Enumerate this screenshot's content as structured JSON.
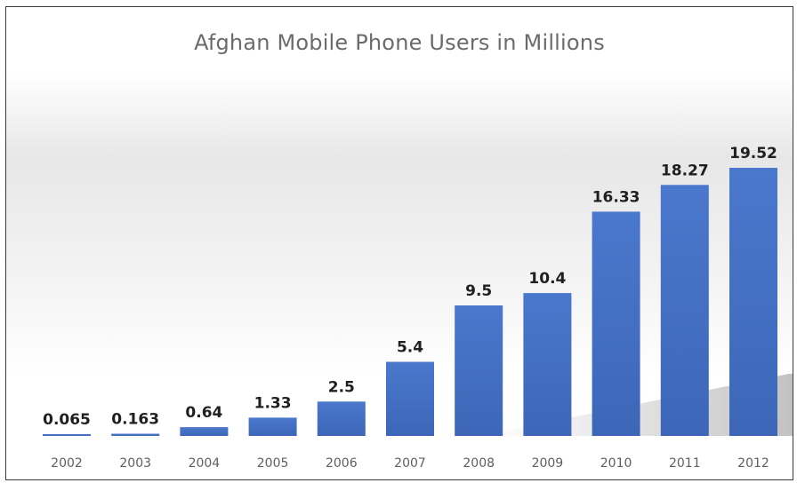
{
  "chart_data": {
    "type": "bar",
    "title": "Afghan Mobile Phone Users in Millions",
    "xlabel": "",
    "ylabel": "",
    "categories": [
      "2002",
      "2003",
      "2004",
      "2005",
      "2006",
      "2007",
      "2008",
      "2009",
      "2010",
      "2011",
      "2012"
    ],
    "values": [
      0.065,
      0.163,
      0.64,
      1.33,
      2.5,
      5.4,
      9.5,
      10.4,
      16.33,
      18.27,
      19.52
    ],
    "value_labels": [
      "0.065",
      "0.163",
      "0.64",
      "1.33",
      "2.5",
      "5.4",
      "9.5",
      "10.4",
      "16.33",
      "18.27",
      "19.52"
    ],
    "ylim": [
      0,
      19.52
    ],
    "grid": false,
    "legend": "none",
    "bar_color": "#4472c4",
    "bar_color_dark": "#2f55a4"
  }
}
